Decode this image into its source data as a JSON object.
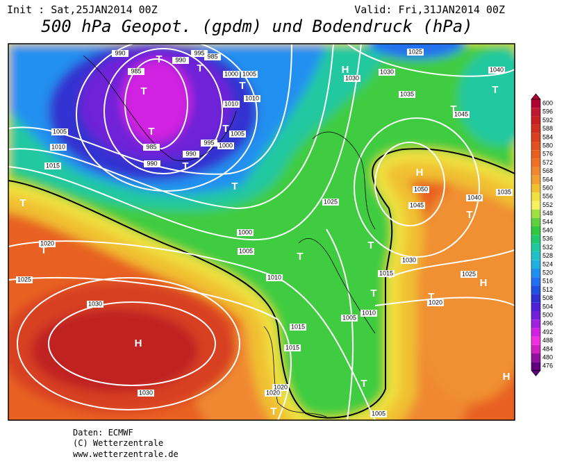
{
  "header": {
    "init": "Init : Sat,25JAN2014 00Z",
    "valid": "Valid: Fri,31JAN2014 00Z",
    "title": "500 hPa Geopot. (gpdm) und Bodendruck (hPa)"
  },
  "map": {
    "isobar_labels": [
      990,
      985,
      990,
      995,
      985,
      1000,
      1005,
      1010,
      1010,
      1005,
      1000,
      995,
      990,
      985,
      990,
      1005,
      1010,
      1015,
      1020,
      1025,
      1030,
      1030,
      1000,
      1005,
      1010,
      1015,
      1015,
      1020,
      1020,
      1005,
      1005,
      1010,
      1015,
      1020,
      1025,
      1030,
      1025,
      1030,
      1030,
      1025,
      1035,
      1040,
      1045,
      1050,
      1045,
      1040,
      1035
    ],
    "pressure_centers": [
      "T",
      "T",
      "T",
      "T",
      "T",
      "T",
      "T",
      "T",
      "T",
      "T",
      "H",
      "T",
      "T",
      "H",
      "T",
      "T",
      "T",
      "T",
      "H",
      "T",
      "T",
      "H",
      "H",
      "T"
    ]
  },
  "colorbar": {
    "ticks": [
      600,
      596,
      592,
      588,
      584,
      580,
      576,
      572,
      568,
      564,
      560,
      556,
      552,
      548,
      544,
      540,
      536,
      532,
      528,
      524,
      520,
      516,
      512,
      508,
      504,
      500,
      496,
      492,
      488,
      484,
      480,
      476
    ],
    "colors": [
      "#b00030",
      "#c01830",
      "#c82020",
      "#d03020",
      "#d84020",
      "#e05020",
      "#e86020",
      "#f07028",
      "#f08830",
      "#f0a030",
      "#f0c030",
      "#f0e040",
      "#f8f060",
      "#a0e040",
      "#60d040",
      "#30c840",
      "#20c870",
      "#20c8a0",
      "#20c0c8",
      "#20b0e0",
      "#2090f0",
      "#2070f0",
      "#2050e0",
      "#3030d0",
      "#5020d8",
      "#7020d8",
      "#a020e0",
      "#d020e0",
      "#f030e0",
      "#d020c0",
      "#9010a0",
      "#600080"
    ]
  },
  "footer": {
    "data": "Daten: ECMWF",
    "copyright": "(C) Wetterzentrale",
    "url": "www.wetterzentrale.de"
  }
}
